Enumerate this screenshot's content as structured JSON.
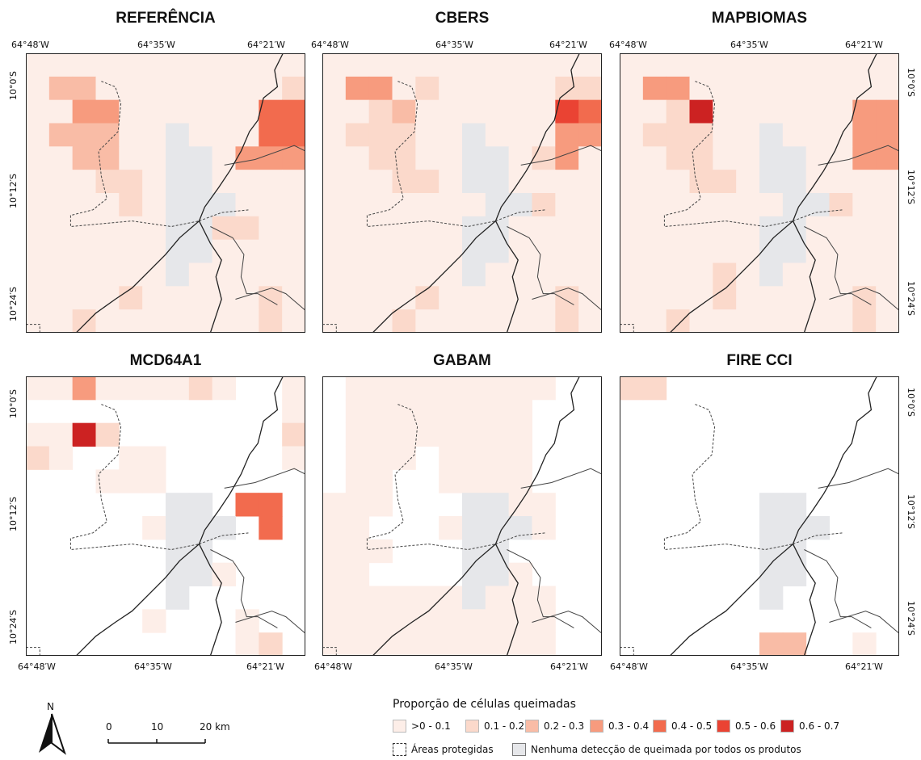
{
  "panels": [
    {
      "title": "REFERÊNCIA"
    },
    {
      "title": "CBERS"
    },
    {
      "title": "MAPBIOMAS"
    },
    {
      "title": "MCD64A1"
    },
    {
      "title": "GABAM"
    },
    {
      "title": "FIRE CCI"
    }
  ],
  "axes": {
    "lon_ticks": [
      "64°48′W",
      "64°35′W",
      "64°21′W"
    ],
    "lat_ticks": [
      "10°0′S",
      "10°12′S",
      "10°24′S"
    ]
  },
  "legend": {
    "title": "Proporção de células queimadas",
    "classes": [
      {
        "label": ">0 - 0.1",
        "color": "#fdeee8"
      },
      {
        "label": "0.1 - 0.2",
        "color": "#fbd9cb"
      },
      {
        "label": "0.2 - 0.3",
        "color": "#f9bca6"
      },
      {
        "label": "0.3 - 0.4",
        "color": "#f79b7e"
      },
      {
        "label": "0.4 - 0.5",
        "color": "#f26b4e"
      },
      {
        "label": "0.5 - 0.6",
        "color": "#ea4333"
      },
      {
        "label": "0.6 - 0.7",
        "color": "#cc2222"
      }
    ],
    "protected": "Áreas protegidas",
    "no_detection": "Nenhuma detecção de queimada por todos os produtos",
    "no_detection_color": "#e6e7ea"
  },
  "north_label": "N",
  "scale": {
    "labels": [
      "0",
      "10",
      "20 km"
    ]
  }
}
